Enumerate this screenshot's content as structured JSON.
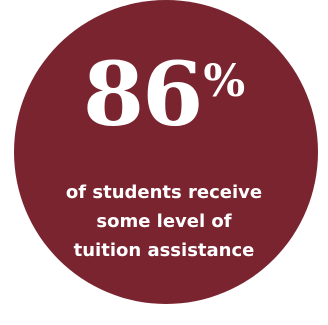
{
  "stat": {
    "number": "86",
    "percent_sign": "%",
    "caption_lines": [
      "of students receive",
      "some level of",
      "tuition assistance"
    ]
  },
  "colors": {
    "circle": "#7a2430",
    "text": "#ffffff",
    "background": "#ffffff"
  }
}
